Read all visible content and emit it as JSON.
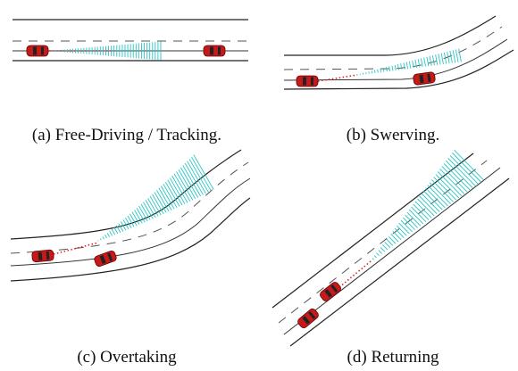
{
  "subfigures": [
    {
      "caption": "(a) Free-Driving / Tracking."
    },
    {
      "caption": "(b) Swerving."
    },
    {
      "caption": "(c) Overtaking"
    },
    {
      "caption": "(d) Returning"
    }
  ]
}
